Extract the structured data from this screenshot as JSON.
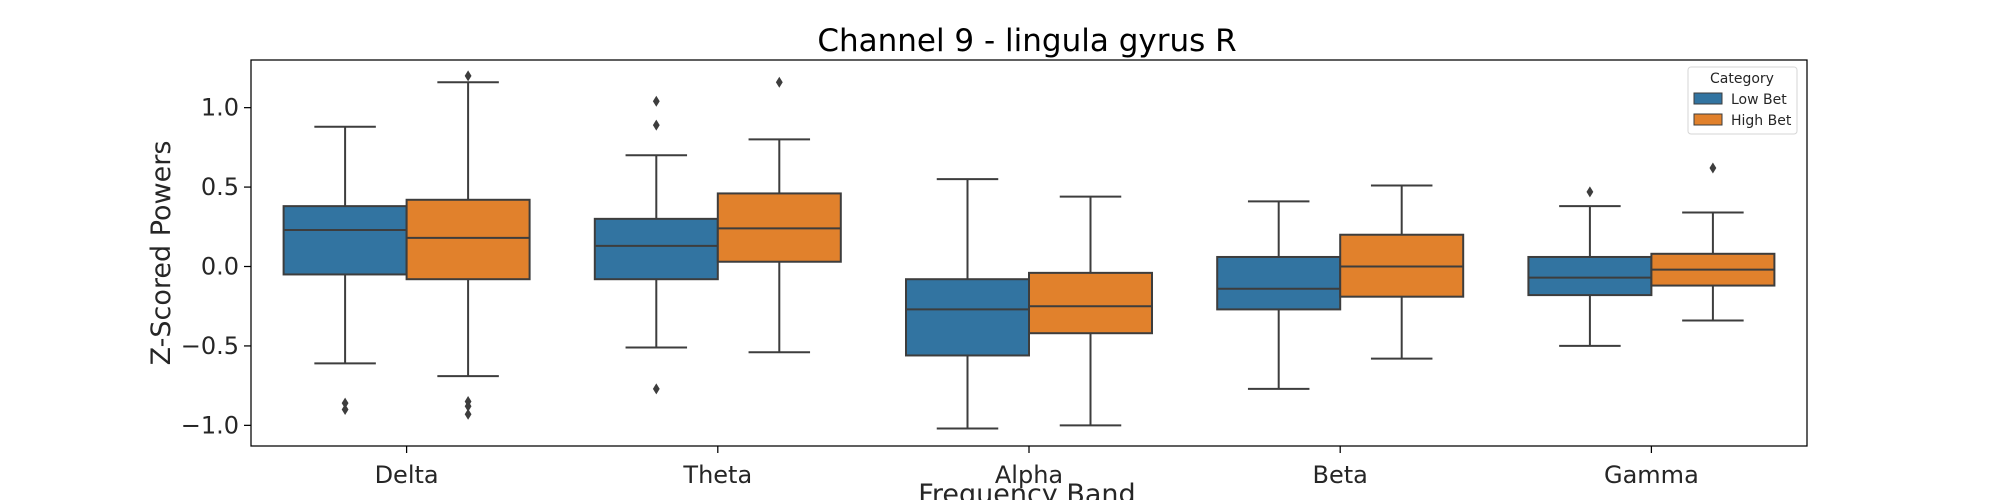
{
  "chart_data": {
    "type": "box",
    "title": "Channel 9 - lingula gyrus R",
    "xlabel": "Frequency Band",
    "ylabel": "Z-Scored Powers",
    "ylim": [
      -1.13,
      1.3
    ],
    "yticks": [
      -1.0,
      -0.5,
      0.0,
      0.5,
      1.0
    ],
    "ytick_labels": [
      "−1.0",
      "−0.5",
      "0.0",
      "0.5",
      "1.0"
    ],
    "categories": [
      "Delta",
      "Theta",
      "Alpha",
      "Beta",
      "Gamma"
    ],
    "grid": false,
    "legend": {
      "title": "Category",
      "position": "top-right"
    },
    "series": [
      {
        "name": "Low Bet",
        "color": "#3274a1",
        "boxes": [
          {
            "whisker_low": -0.61,
            "q1": -0.05,
            "median": 0.23,
            "q3": 0.38,
            "whisker_high": 0.88,
            "outliers": [
              -0.86,
              -0.9
            ]
          },
          {
            "whisker_low": -0.51,
            "q1": -0.08,
            "median": 0.13,
            "q3": 0.3,
            "whisker_high": 0.7,
            "outliers": [
              1.04,
              0.89,
              -0.77
            ]
          },
          {
            "whisker_low": -1.02,
            "q1": -0.56,
            "median": -0.27,
            "q3": -0.08,
            "whisker_high": 0.55,
            "outliers": []
          },
          {
            "whisker_low": -0.77,
            "q1": -0.27,
            "median": -0.14,
            "q3": 0.06,
            "whisker_high": 0.41,
            "outliers": []
          },
          {
            "whisker_low": -0.5,
            "q1": -0.18,
            "median": -0.07,
            "q3": 0.06,
            "whisker_high": 0.38,
            "outliers": [
              0.47
            ]
          }
        ]
      },
      {
        "name": "High Bet",
        "color": "#e1812c",
        "boxes": [
          {
            "whisker_low": -0.69,
            "q1": -0.08,
            "median": 0.18,
            "q3": 0.42,
            "whisker_high": 1.16,
            "outliers": [
              1.2,
              -0.85,
              -0.88,
              -0.93
            ]
          },
          {
            "whisker_low": -0.54,
            "q1": 0.03,
            "median": 0.24,
            "q3": 0.46,
            "whisker_high": 0.8,
            "outliers": [
              1.16
            ]
          },
          {
            "whisker_low": -1.0,
            "q1": -0.42,
            "median": -0.25,
            "q3": -0.04,
            "whisker_high": 0.44,
            "outliers": []
          },
          {
            "whisker_low": -0.58,
            "q1": -0.19,
            "median": 0.0,
            "q3": 0.2,
            "whisker_high": 0.51,
            "outliers": []
          },
          {
            "whisker_low": -0.34,
            "q1": -0.12,
            "median": -0.02,
            "q3": 0.08,
            "whisker_high": 0.34,
            "outliers": [
              0.62
            ]
          }
        ]
      }
    ]
  }
}
